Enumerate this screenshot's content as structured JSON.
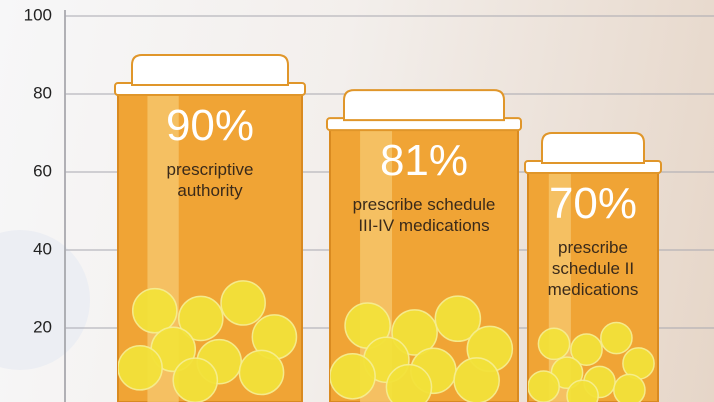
{
  "chart_data": {
    "type": "bottle",
    "categories": [
      "prescriptive authority",
      "prescribe schedule III-IV medications",
      "prescribe schedule II medications"
    ],
    "values": [
      90,
      81,
      70
    ],
    "value_labels": [
      "90%",
      "81%",
      "70%"
    ],
    "color": "#f0a435",
    "ylim": [
      0,
      100
    ],
    "yticks": [
      20,
      40,
      60,
      80,
      100
    ],
    "grid": true
  }
}
